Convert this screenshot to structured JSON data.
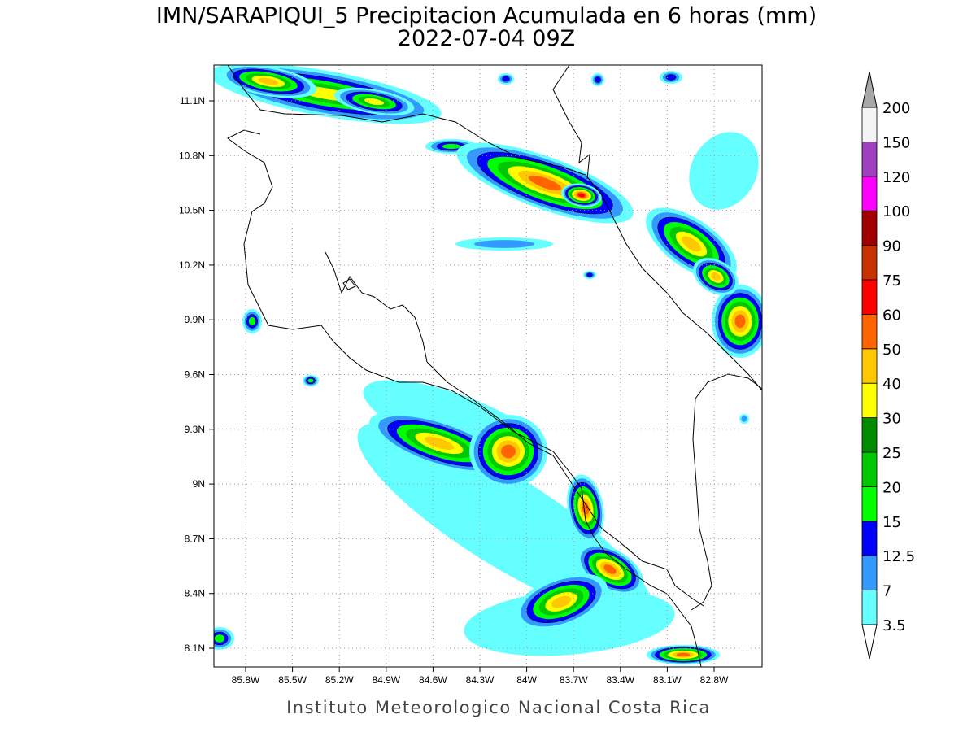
{
  "title": "IMN/SARAPIQUI_5 Precipitacion Acumulada en 6 horas (mm)",
  "subtitle": "2022-07-04 09Z",
  "lon_ticks": [
    "85.8W",
    "85.5W",
    "85.2W",
    "84.9W",
    "84.6W",
    "84.3W",
    "84W",
    "83.7W",
    "83.4W",
    "83.1W",
    "82.8W"
  ],
  "lat_ticks": [
    "11.1N",
    "10.8N",
    "10.5N",
    "10.2N",
    "9.9N",
    "9.6N",
    "9.3N",
    "9N",
    "8.7N",
    "8.4N",
    "8.1N"
  ],
  "colorbar": {
    "levels": [
      3.5,
      7,
      12.5,
      15,
      20,
      25,
      30,
      40,
      50,
      60,
      75,
      90,
      100,
      120,
      150,
      200
    ],
    "colors": [
      "#66ffff",
      "#3399ff",
      "#0000ff",
      "#00ff00",
      "#00c800",
      "#008c00",
      "#ffff00",
      "#ffc800",
      "#ff6400",
      "#ff0000",
      "#c83200",
      "#a00000",
      "#ff00ff",
      "#a040c0",
      "#f4f4f4"
    ],
    "under_color": "#ffffff",
    "over_color": "#a8a8a8"
  },
  "footer": "Instituto Meteorologico Nacional Costa Rica"
}
